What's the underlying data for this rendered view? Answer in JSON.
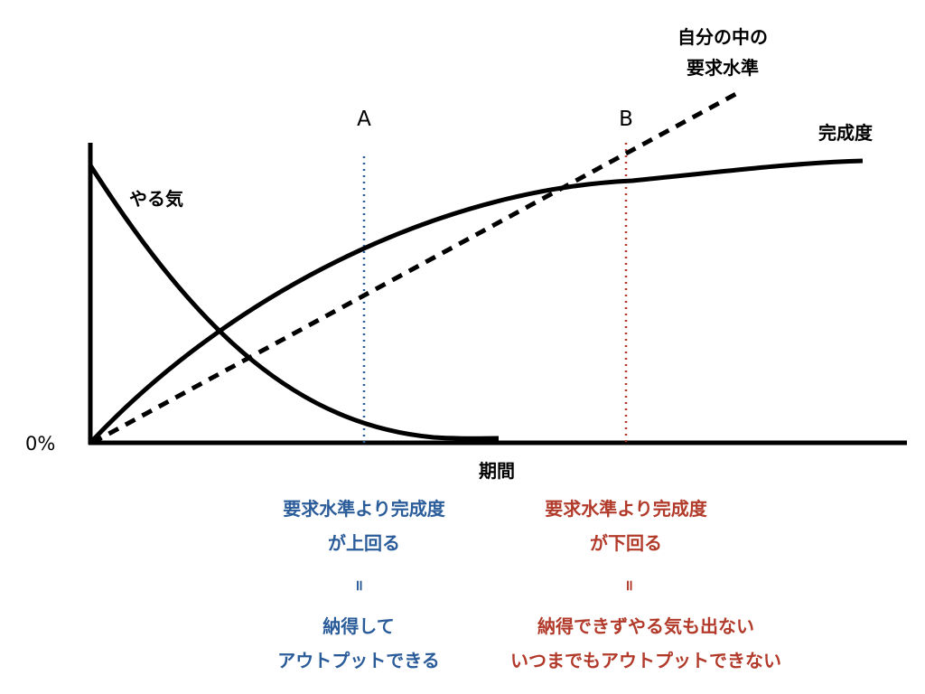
{
  "labels": {
    "origin": "0%",
    "x_axis": "期間",
    "motivation": "やる気",
    "completion": "完成度",
    "requirement_line1": "自分の中の",
    "requirement_line2": "要求水準",
    "marker_a": "A",
    "marker_b": "B"
  },
  "notes": {
    "a": {
      "line1": "要求水準より完成度",
      "line2": "が上回る",
      "equals": "॥",
      "line3": "納得して",
      "line4": "アウトプットできる"
    },
    "b": {
      "line1": "要求水準より完成度",
      "line2": "が下回る",
      "equals": "॥",
      "line3": "納得できずやる気も出ない",
      "line4": "いつまでもアウトプットできない"
    }
  },
  "colors": {
    "curve": "#000000",
    "marker_a": "#2b5c9a",
    "marker_b": "#b23a2a",
    "note_a": "#2b5c9a",
    "note_b": "#b23a2a"
  }
}
